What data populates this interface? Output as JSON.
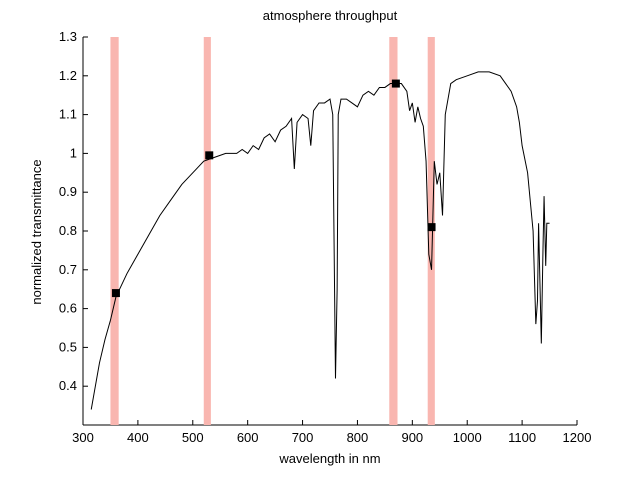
{
  "chart_data": {
    "type": "line",
    "title": "atmosphere throughput",
    "x_label": "wavelength in nm",
    "y_label": "normalized transmittance",
    "xlim": [
      300,
      1200
    ],
    "ylim": [
      0.3,
      1.3
    ],
    "xticks": [
      300,
      400,
      500,
      600,
      700,
      800,
      900,
      1000,
      1100,
      1200
    ],
    "yticks": [
      0.4,
      0.5,
      0.6,
      0.7,
      0.8,
      0.9,
      1,
      1.1,
      1.2,
      1.3
    ],
    "series": [
      {
        "color": "#000000",
        "x": [
          315,
          320,
          330,
          340,
          350,
          360,
          370,
          380,
          400,
          420,
          440,
          460,
          480,
          500,
          520,
          540,
          560,
          580,
          590,
          600,
          610,
          620,
          630,
          640,
          650,
          660,
          670,
          680,
          685,
          690,
          700,
          710,
          715,
          720,
          730,
          740,
          750,
          755,
          760,
          763,
          765,
          770,
          780,
          790,
          800,
          810,
          820,
          830,
          840,
          850,
          860,
          870,
          880,
          890,
          895,
          900,
          905,
          910,
          915,
          920,
          925,
          930,
          935,
          940,
          945,
          950,
          955,
          960,
          970,
          980,
          1000,
          1020,
          1040,
          1060,
          1070,
          1080,
          1090,
          1095,
          1100,
          1110,
          1120,
          1125,
          1128,
          1130,
          1135,
          1138,
          1140,
          1143,
          1145,
          1150
        ],
        "values": [
          0.34,
          0.38,
          0.46,
          0.52,
          0.57,
          0.63,
          0.66,
          0.69,
          0.74,
          0.79,
          0.84,
          0.88,
          0.92,
          0.95,
          0.98,
          0.99,
          1.0,
          1.0,
          1.01,
          1.0,
          1.02,
          1.01,
          1.04,
          1.05,
          1.03,
          1.06,
          1.07,
          1.09,
          0.96,
          1.08,
          1.1,
          1.09,
          1.02,
          1.11,
          1.13,
          1.13,
          1.14,
          1.1,
          0.42,
          0.65,
          1.1,
          1.14,
          1.14,
          1.13,
          1.12,
          1.15,
          1.16,
          1.15,
          1.17,
          1.17,
          1.18,
          1.18,
          1.18,
          1.16,
          1.11,
          1.13,
          1.08,
          1.12,
          1.09,
          1.07,
          0.98,
          0.74,
          0.7,
          0.98,
          0.92,
          0.95,
          0.84,
          1.1,
          1.18,
          1.19,
          1.2,
          1.21,
          1.21,
          1.2,
          1.18,
          1.16,
          1.12,
          1.08,
          1.02,
          0.95,
          0.8,
          0.56,
          0.62,
          0.82,
          0.51,
          0.75,
          0.89,
          0.71,
          0.82,
          0.82
        ]
      }
    ],
    "bands": {
      "color": "#f9b6b0",
      "ranges": [
        [
          350,
          365
        ],
        [
          520,
          533
        ],
        [
          858,
          873
        ],
        [
          928,
          941
        ]
      ]
    },
    "markers": {
      "color": "#000000",
      "x": [
        360,
        530,
        870,
        935
      ],
      "values": [
        0.64,
        0.995,
        1.18,
        0.81
      ]
    }
  }
}
